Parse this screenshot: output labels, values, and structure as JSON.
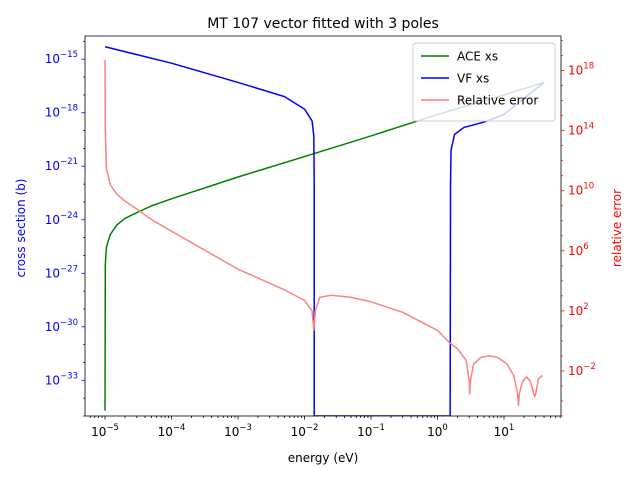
{
  "chart_data": {
    "type": "line",
    "title": "MT 107 vector fitted with 3 poles",
    "xlabel": "energy (eV)",
    "ylabel": "cross section (b)",
    "y2label": "relative error",
    "xscale": "log",
    "yscale": "log",
    "y2scale": "log",
    "xlim": [
      5e-06,
      72
    ],
    "ylim": [
      1e-35,
      2e-14
    ],
    "y2lim": [
      1e-05,
      2e+20
    ],
    "x_ticks": [
      {
        "value": 1e-05,
        "label": "10",
        "exp": "−5"
      },
      {
        "value": 0.0001,
        "label": "10",
        "exp": "−4"
      },
      {
        "value": 0.001,
        "label": "10",
        "exp": "−3"
      },
      {
        "value": 0.01,
        "label": "10",
        "exp": "−2"
      },
      {
        "value": 0.1,
        "label": "10",
        "exp": "−1"
      },
      {
        "value": 1,
        "label": "10",
        "exp": "0"
      },
      {
        "value": 10,
        "label": "10",
        "exp": "1"
      }
    ],
    "y_ticks": [
      {
        "value": 1e-15,
        "label": "10",
        "exp": "−15"
      },
      {
        "value": 1e-18,
        "label": "10",
        "exp": "−18"
      },
      {
        "value": 1e-21,
        "label": "10",
        "exp": "−21"
      },
      {
        "value": 1e-24,
        "label": "10",
        "exp": "−24"
      },
      {
        "value": 1e-27,
        "label": "10",
        "exp": "−27"
      },
      {
        "value": 1e-30,
        "label": "10",
        "exp": "−30"
      },
      {
        "value": 1e-33,
        "label": "10",
        "exp": "−33"
      }
    ],
    "y2_ticks": [
      {
        "value": 1e+18,
        "label": "10",
        "exp": "18"
      },
      {
        "value": 100000000000000.0,
        "label": "10",
        "exp": "14"
      },
      {
        "value": 10000000000.0,
        "label": "10",
        "exp": "10"
      },
      {
        "value": 1000000.0,
        "label": "10",
        "exp": "6"
      },
      {
        "value": 100.0,
        "label": "10",
        "exp": "2"
      },
      {
        "value": 0.01,
        "label": "10",
        "exp": "−2"
      }
    ],
    "legend_position": "top-right",
    "series": [
      {
        "name": "ACE xs",
        "axis": "left",
        "color": "#008000",
        "points": [
          [
            1e-05,
            2e-35
          ],
          [
            1.01e-05,
            3e-27
          ],
          [
            1.05e-05,
            3e-26
          ],
          [
            1.2e-05,
            1.5e-25
          ],
          [
            1.5e-05,
            5e-25
          ],
          [
            2e-05,
            1.2e-24
          ],
          [
            3e-05,
            2.5e-24
          ],
          [
            5e-05,
            6e-24
          ],
          [
            0.0001,
            1.5e-23
          ],
          [
            0.001,
            2.5e-22
          ],
          [
            0.01,
            3.5e-21
          ],
          [
            0.1,
            5e-20
          ],
          [
            1,
            8e-19
          ],
          [
            10,
            1e-17
          ],
          [
            40,
            5e-17
          ]
        ]
      },
      {
        "name": "VF xs",
        "axis": "left",
        "color": "#0000ff",
        "points": [
          [
            1e-05,
            5e-15
          ],
          [
            0.0001,
            6e-16
          ],
          [
            0.001,
            5e-17
          ],
          [
            0.005,
            8e-18
          ],
          [
            0.01,
            1.6e-18
          ],
          [
            0.013,
            3.5e-19
          ],
          [
            0.0138,
            5e-20
          ],
          [
            0.014,
            1e-22
          ],
          [
            0.014,
            1e-35
          ],
          [
            1.55,
            1e-35
          ],
          [
            1.57,
            1e-22
          ],
          [
            1.6,
            8e-21
          ],
          [
            1.8,
            6e-20
          ],
          [
            2.5,
            1.5e-19
          ],
          [
            5,
            3e-19
          ],
          [
            10,
            8e-19
          ],
          [
            40,
            5e-17
          ]
        ]
      },
      {
        "name": "Relative error",
        "axis": "right",
        "color": "#ff8080",
        "points": [
          [
            1e-05,
            5e+18
          ],
          [
            1.01e-05,
            100000000000000.0
          ],
          [
            1.05e-05,
            300000000000.0
          ],
          [
            1.2e-05,
            25000000000.0
          ],
          [
            1.5e-05,
            6000000000.0
          ],
          [
            2e-05,
            2000000000.0
          ],
          [
            3e-05,
            600000000.0
          ],
          [
            5e-05,
            120000000.0
          ],
          [
            0.0001,
            20000000.0
          ],
          [
            0.001,
            60000.0
          ],
          [
            0.005,
            2500.0
          ],
          [
            0.01,
            500.0
          ],
          [
            0.013,
            100.0
          ],
          [
            0.0138,
            5
          ],
          [
            0.014,
            10.0
          ],
          [
            0.0145,
            100.0
          ],
          [
            0.017,
            800.0
          ],
          [
            0.025,
            1100.0
          ],
          [
            0.05,
            800.0
          ],
          [
            0.1,
            400.0
          ],
          [
            0.3,
            80.0
          ],
          [
            1,
            5
          ],
          [
            1.5,
            0.8
          ],
          [
            2,
            0.3
          ],
          [
            2.7,
            0.05
          ],
          [
            3.0,
            0.002
          ],
          [
            3.05,
            0.0003
          ],
          [
            3.1,
            0.002
          ],
          [
            3.5,
            0.03
          ],
          [
            4.5,
            0.08
          ],
          [
            6,
            0.1
          ],
          [
            8,
            0.08
          ],
          [
            11,
            0.03
          ],
          [
            14,
            0.005
          ],
          [
            16,
            0.0003
          ],
          [
            16.5,
            5e-05
          ],
          [
            17,
            0.0003
          ],
          [
            19,
            0.002
          ],
          [
            22,
            0.004
          ],
          [
            25,
            0.002
          ],
          [
            28,
            0.0003
          ],
          [
            29,
            0.0002
          ],
          [
            30,
            0.0003
          ],
          [
            33,
            0.003
          ],
          [
            38,
            0.005
          ]
        ]
      }
    ]
  }
}
